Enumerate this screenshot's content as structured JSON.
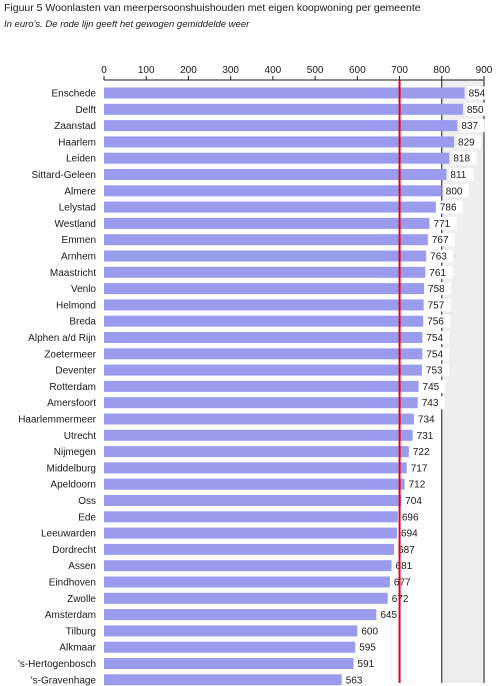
{
  "title": "Figuur 5 Woonlasten van meerpersoonshuishouden met eigen koopwoning per gemeente",
  "subtitle": "In euro's. De rode lijn geeft het gewogen gemiddelde weer",
  "chart_data": {
    "type": "bar",
    "orientation": "horizontal",
    "categories": [
      "Enschede",
      "Delft",
      "Zaanstad",
      "Haarlem",
      "Leiden",
      "Sittard-Geleen",
      "Almere",
      "Lelystad",
      "Westland",
      "Emmen",
      "Arnhem",
      "Maastricht",
      "Venlo",
      "Helmond",
      "Breda",
      "Alphen a/d Rijn",
      "Zoetermeer",
      "Deventer",
      "Rotterdam",
      "Amersfoort",
      "Haarlemmermeer",
      "Utrecht",
      "Nijmegen",
      "Middelburg",
      "Apeldoorn",
      "Oss",
      "Ede",
      "Leeuwarden",
      "Dordrecht",
      "Assen",
      "Eindhoven",
      "Zwolle",
      "Amsterdam",
      "Tilburg",
      "Alkmaar",
      "'s-Hertogenbosch",
      "'s-Gravenhage"
    ],
    "values": [
      854,
      850,
      837,
      829,
      818,
      811,
      800,
      786,
      771,
      767,
      763,
      761,
      758,
      757,
      756,
      754,
      754,
      753,
      745,
      743,
      734,
      731,
      722,
      717,
      712,
      704,
      696,
      694,
      687,
      681,
      677,
      672,
      645,
      600,
      595,
      591,
      563
    ],
    "ticks": [
      "0",
      "100",
      "200",
      "300",
      "400",
      "500",
      "600",
      "700",
      "800",
      "900"
    ],
    "xlim": [
      0,
      900
    ],
    "reference_line": 700,
    "shaded_range": [
      800,
      900
    ],
    "colors": {
      "bar": "#9b9bee",
      "reference_line": "#e0001b",
      "shade": "#eeeeee",
      "grid": "#1a1a1a"
    },
    "grid": true
  }
}
